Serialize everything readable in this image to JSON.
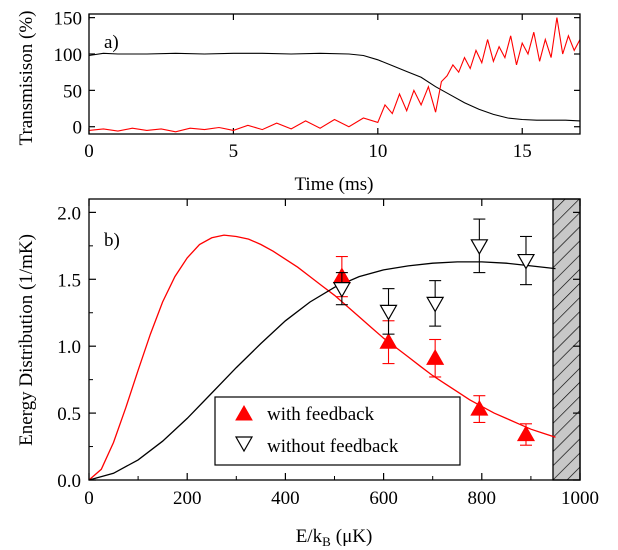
{
  "chart_data": [
    {
      "panel": "a)",
      "type": "line",
      "xlabel": "Time (ms)",
      "ylabel": "Transmisison (%)",
      "xlim": [
        0,
        17
      ],
      "ylim": [
        -10,
        155
      ],
      "xticks": [
        0,
        5,
        10,
        15
      ],
      "yticks": [
        0,
        50,
        100,
        150
      ],
      "series": [
        {
          "color": "#000000",
          "x": [
            0,
            0.5,
            1,
            2,
            3,
            4,
            5,
            6,
            7,
            8,
            9,
            9.5,
            10,
            10.5,
            11,
            11.5,
            12,
            12.5,
            13,
            13.5,
            14,
            14.5,
            15,
            15.5,
            16,
            16.5,
            17
          ],
          "y": [
            98,
            101,
            100,
            100,
            101,
            100,
            101,
            101,
            100,
            101,
            100,
            98,
            92,
            84,
            76,
            68,
            55,
            44,
            33,
            24,
            17,
            12,
            10,
            9,
            9,
            9,
            8
          ]
        },
        {
          "color": "#ff0000",
          "x": [
            0,
            0.5,
            1,
            1.5,
            2,
            2.5,
            3,
            3.5,
            4,
            4.5,
            5,
            5.5,
            6,
            6.5,
            7,
            7.5,
            8,
            8.5,
            9,
            9.5,
            10,
            10.25,
            10.5,
            10.75,
            11,
            11.25,
            11.5,
            11.75,
            12,
            12.2,
            12.4,
            12.6,
            12.8,
            13,
            13.2,
            13.4,
            13.6,
            13.8,
            14,
            14.2,
            14.4,
            14.6,
            14.8,
            15,
            15.2,
            15.4,
            15.6,
            15.8,
            16,
            16.2,
            16.4,
            16.6,
            16.8,
            17
          ],
          "y": [
            -5,
            -3,
            -6,
            -2,
            -5,
            -3,
            -7,
            -2,
            -4,
            -1,
            -5,
            2,
            -4,
            5,
            -3,
            8,
            -2,
            10,
            0,
            12,
            6,
            30,
            18,
            45,
            22,
            50,
            30,
            55,
            20,
            62,
            70,
            85,
            75,
            95,
            80,
            105,
            88,
            120,
            90,
            110,
            95,
            125,
            85,
            115,
            100,
            130,
            90,
            120,
            95,
            150,
            100,
            125,
            105,
            120
          ]
        }
      ]
    },
    {
      "panel": "b)",
      "type": "scatter",
      "xlabel": "E/k",
      "xlabel_sub": "B",
      "xlabel_unit": "(μK)",
      "ylabel": "Energy Distribution (1/mK)",
      "xlim": [
        0,
        1000
      ],
      "ylim": [
        0,
        2.1
      ],
      "xticks": [
        0,
        200,
        400,
        600,
        800,
        1000
      ],
      "yticks": [
        0.0,
        0.5,
        1.0,
        1.5,
        2.0
      ],
      "ytick_labels": [
        "0.0",
        "0.5",
        "1.0",
        "1.5",
        "2.0"
      ],
      "hatched_region": [
        945,
        1000
      ],
      "legend": {
        "placement": "bottom-center"
      },
      "series": [
        {
          "name": "with feedback",
          "marker": "filled-triangle-up",
          "color": "#ff0000",
          "x": [
            515,
            610,
            705,
            795,
            890
          ],
          "y": [
            1.52,
            1.03,
            0.91,
            0.53,
            0.34
          ],
          "err": [
            0.15,
            0.16,
            0.14,
            0.1,
            0.08
          ]
        },
        {
          "name": "without feedback",
          "marker": "open-triangle-down",
          "color": "#000000",
          "x": [
            515,
            610,
            705,
            795,
            890
          ],
          "y": [
            1.43,
            1.26,
            1.32,
            1.75,
            1.64
          ],
          "err": [
            0.12,
            0.17,
            0.17,
            0.2,
            0.18
          ]
        },
        {
          "name": "",
          "type": "line",
          "color": "#ff0000",
          "x": [
            0,
            25,
            50,
            75,
            100,
            125,
            150,
            175,
            200,
            225,
            250,
            275,
            300,
            325,
            350,
            375,
            400,
            425,
            450,
            475,
            500,
            525,
            550,
            575,
            600,
            625,
            650,
            675,
            700,
            725,
            750,
            775,
            800,
            825,
            850,
            875,
            900,
            925,
            950
          ],
          "y": [
            0.0,
            0.08,
            0.28,
            0.54,
            0.82,
            1.09,
            1.33,
            1.52,
            1.66,
            1.76,
            1.81,
            1.83,
            1.82,
            1.8,
            1.76,
            1.71,
            1.65,
            1.59,
            1.52,
            1.45,
            1.38,
            1.3,
            1.22,
            1.14,
            1.06,
            0.99,
            0.92,
            0.85,
            0.78,
            0.72,
            0.66,
            0.6,
            0.55,
            0.5,
            0.46,
            0.42,
            0.38,
            0.35,
            0.32
          ]
        },
        {
          "name": "",
          "type": "line",
          "color": "#000000",
          "x": [
            0,
            50,
            100,
            150,
            200,
            250,
            300,
            350,
            400,
            450,
            500,
            550,
            600,
            650,
            700,
            750,
            800,
            850,
            900,
            950
          ],
          "y": [
            0.0,
            0.05,
            0.15,
            0.29,
            0.46,
            0.65,
            0.84,
            1.02,
            1.19,
            1.33,
            1.44,
            1.52,
            1.57,
            1.6,
            1.62,
            1.63,
            1.63,
            1.62,
            1.6,
            1.58
          ]
        }
      ]
    }
  ]
}
